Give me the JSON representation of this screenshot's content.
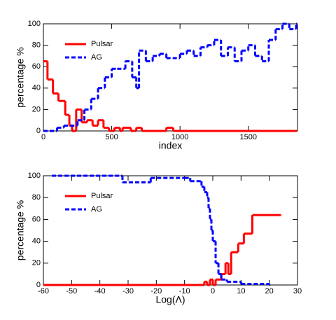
{
  "chart_data": [
    {
      "type": "line",
      "drawstyle": "steps-post",
      "xlabel": "index",
      "ylabel": "percentage %",
      "xlim": [
        0,
        1860
      ],
      "ylim": [
        0,
        100
      ],
      "xticks": [
        0,
        500,
        1000,
        1500
      ],
      "yticks": [
        0,
        20,
        40,
        60,
        80,
        100
      ],
      "legend": "upper left",
      "series": [
        {
          "name": "Pulsar",
          "color": "#ff0000",
          "dash": false,
          "x": [
            0,
            30,
            70,
            110,
            160,
            190,
            210,
            240,
            280,
            320,
            360,
            400,
            440,
            480,
            520,
            560,
            580,
            640,
            680,
            720,
            900,
            950,
            1000,
            1850
          ],
          "values": [
            65,
            48,
            35,
            28,
            15,
            5,
            0,
            20,
            8,
            10,
            5,
            10,
            3,
            0,
            3,
            0,
            3,
            0,
            3,
            0,
            3,
            0,
            0,
            0
          ]
        },
        {
          "name": "AG",
          "color": "#0000ff",
          "dash": true,
          "x": [
            0,
            100,
            150,
            250,
            300,
            350,
            400,
            450,
            500,
            540,
            600,
            650,
            680,
            700,
            750,
            800,
            850,
            900,
            1000,
            1050,
            1100,
            1150,
            1200,
            1250,
            1300,
            1350,
            1400,
            1450,
            1500,
            1550,
            1600,
            1650,
            1700,
            1750,
            1800,
            1850
          ],
          "values": [
            0,
            3,
            5,
            10,
            20,
            30,
            40,
            50,
            58,
            58,
            65,
            50,
            40,
            75,
            65,
            70,
            72,
            68,
            72,
            75,
            70,
            78,
            80,
            85,
            70,
            78,
            65,
            75,
            80,
            70,
            65,
            85,
            95,
            100,
            95,
            100
          ]
        }
      ]
    },
    {
      "type": "line",
      "drawstyle": "steps-post",
      "xlabel": "Log(Λ)",
      "ylabel": "percentage %",
      "xlim": [
        -60,
        30
      ],
      "ylim": [
        0,
        100
      ],
      "xticks": [
        -60,
        -50,
        -40,
        -30,
        -20,
        -10,
        0,
        10,
        20,
        30
      ],
      "yticks": [
        0,
        20,
        40,
        60,
        80,
        100
      ],
      "legend": "upper left",
      "series": [
        {
          "name": "Pulsar",
          "color": "#ff0000",
          "dash": false,
          "x": [
            -60,
            -3,
            -2,
            -1,
            0,
            1,
            3,
            4.5,
            5.5,
            6.5,
            9,
            11,
            14,
            24
          ],
          "values": [
            0,
            3,
            0,
            5,
            0,
            5,
            10,
            20,
            10,
            30,
            38,
            47,
            64,
            64
          ]
        },
        {
          "name": "AG",
          "color": "#0000ff",
          "dash": true,
          "x": [
            -57,
            -32,
            -22,
            -10,
            -8,
            -4,
            -3,
            -2,
            -1.5,
            -1,
            -0.5,
            0,
            1,
            2,
            3,
            5,
            10,
            20
          ],
          "values": [
            100,
            94,
            98,
            98,
            95,
            90,
            85,
            80,
            70,
            60,
            50,
            40,
            20,
            10,
            5,
            3,
            1,
            0
          ]
        }
      ]
    }
  ]
}
